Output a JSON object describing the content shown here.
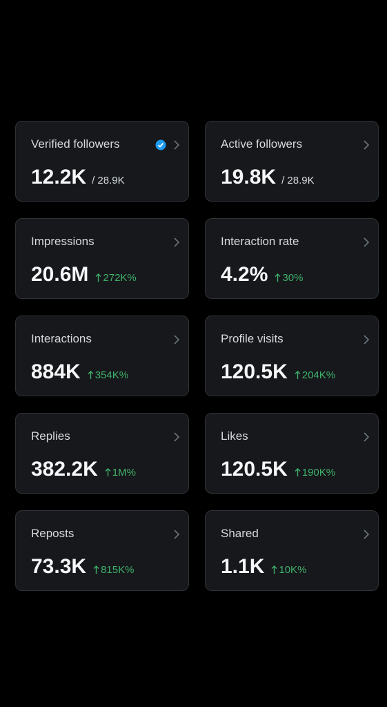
{
  "cards": [
    {
      "label": "Verified followers",
      "value": "12.2K",
      "total": "/ 28.9K",
      "verified": true
    },
    {
      "label": "Active followers",
      "value": "19.8K",
      "total": "/ 28.9K"
    },
    {
      "label": "Impressions",
      "value": "20.6M",
      "change": "272K%"
    },
    {
      "label": "Interaction rate",
      "value": "4.2%",
      "change": "30%"
    },
    {
      "label": "Interactions",
      "value": "884K",
      "change": "354K%"
    },
    {
      "label": "Profile visits",
      "value": "120.5K",
      "change": "204K%"
    },
    {
      "label": "Replies",
      "value": "382.2K",
      "change": "1M%"
    },
    {
      "label": "Likes",
      "value": "120.5K",
      "change": "190K%"
    },
    {
      "label": "Reposts",
      "value": "73.3K",
      "change": "815K%"
    },
    {
      "label": "Shared",
      "value": "1.1K",
      "change": "10K%"
    }
  ]
}
